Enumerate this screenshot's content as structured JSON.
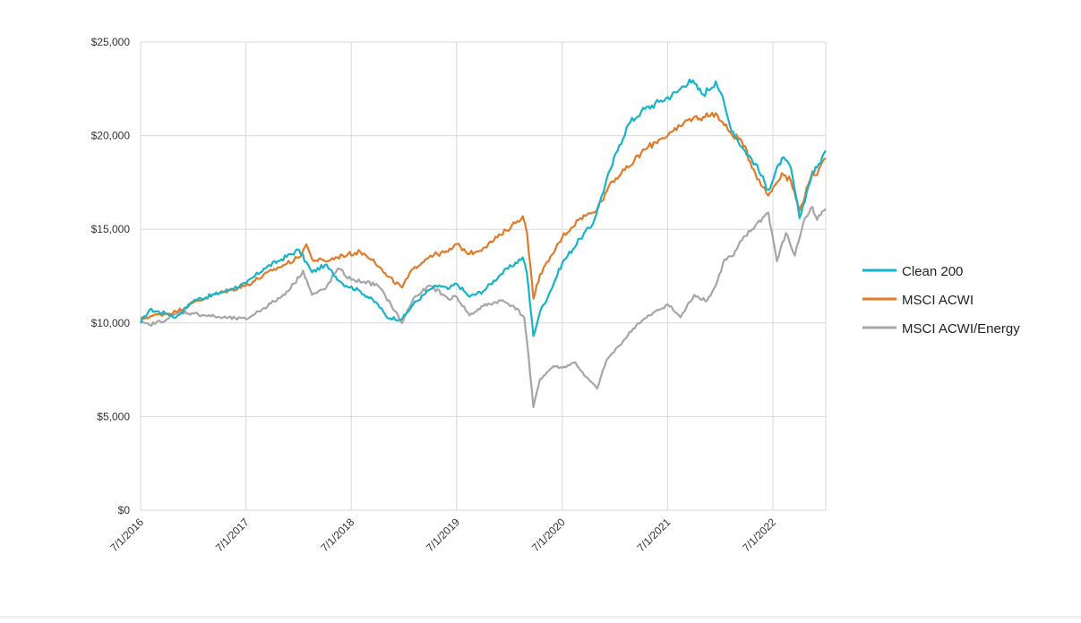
{
  "chart_data": {
    "type": "line",
    "title": "",
    "xlabel": "",
    "ylabel": "",
    "ylim": [
      0,
      25000
    ],
    "y_ticks": [
      0,
      5000,
      10000,
      15000,
      20000,
      25000
    ],
    "y_tick_labels": [
      "$0",
      "$5,000",
      "$10,000",
      "$15,000",
      "$20,000",
      "$25,000"
    ],
    "x_range": [
      "2016-07-01",
      "2022-12-31"
    ],
    "x_ticks": [
      "2016-07-01",
      "2017-07-01",
      "2018-07-01",
      "2019-07-01",
      "2020-07-01",
      "2021-07-01",
      "2022-07-01"
    ],
    "x_tick_labels": [
      "7/1/2016",
      "7/1/2017",
      "7/1/2018",
      "7/1/2019",
      "7/1/2020",
      "7/1/2021",
      "7/1/2022"
    ],
    "grid": true,
    "legend": "right",
    "series": [
      {
        "name": "Clean 200",
        "color": "#17b3c9",
        "points": [
          [
            "2016-07-01",
            10000
          ],
          [
            "2016-08-01",
            10700
          ],
          [
            "2016-10-01",
            10500
          ],
          [
            "2016-11-01",
            10300
          ],
          [
            "2017-01-01",
            11200
          ],
          [
            "2017-04-01",
            11600
          ],
          [
            "2017-07-01",
            12100
          ],
          [
            "2017-09-01",
            12900
          ],
          [
            "2017-11-01",
            13400
          ],
          [
            "2018-01-01",
            13900
          ],
          [
            "2018-02-15",
            12700
          ],
          [
            "2018-04-01",
            13100
          ],
          [
            "2018-06-01",
            12100
          ],
          [
            "2018-08-01",
            11700
          ],
          [
            "2018-10-01",
            11000
          ],
          [
            "2018-11-01",
            10300
          ],
          [
            "2018-12-24",
            10200
          ],
          [
            "2019-02-01",
            11000
          ],
          [
            "2019-04-01",
            11800
          ],
          [
            "2019-05-01",
            12000
          ],
          [
            "2019-06-01",
            11800
          ],
          [
            "2019-07-01",
            12100
          ],
          [
            "2019-08-15",
            11400
          ],
          [
            "2019-10-01",
            11700
          ],
          [
            "2019-12-01",
            12600
          ],
          [
            "2020-02-15",
            13500
          ],
          [
            "2020-03-01",
            12600
          ],
          [
            "2020-03-23",
            9300
          ],
          [
            "2020-04-15",
            10600
          ],
          [
            "2020-05-15",
            11500
          ],
          [
            "2020-07-01",
            13200
          ],
          [
            "2020-09-01",
            14500
          ],
          [
            "2020-10-15",
            15300
          ],
          [
            "2020-11-15",
            16800
          ],
          [
            "2020-12-15",
            18200
          ],
          [
            "2021-01-15",
            19500
          ],
          [
            "2021-02-15",
            20600
          ],
          [
            "2021-04-01",
            21300
          ],
          [
            "2021-06-01",
            21800
          ],
          [
            "2021-08-01",
            22300
          ],
          [
            "2021-09-15",
            23000
          ],
          [
            "2021-11-01",
            22200
          ],
          [
            "2021-12-15",
            22900
          ],
          [
            "2022-01-01",
            22300
          ],
          [
            "2022-02-01",
            20600
          ],
          [
            "2022-03-15",
            19400
          ],
          [
            "2022-05-01",
            18500
          ],
          [
            "2022-06-15",
            17100
          ],
          [
            "2022-08-01",
            18800
          ],
          [
            "2022-09-01",
            18300
          ],
          [
            "2022-10-01",
            15600
          ],
          [
            "2022-11-01",
            17300
          ],
          [
            "2022-11-15",
            18000
          ],
          [
            "2022-12-01",
            18300
          ],
          [
            "2022-12-31",
            19200
          ]
        ]
      },
      {
        "name": "MSCI ACWI",
        "color": "#e07b2a",
        "points": [
          [
            "2016-07-01",
            10200
          ],
          [
            "2016-08-15",
            10400
          ],
          [
            "2016-10-01",
            10500
          ],
          [
            "2016-11-01",
            10600
          ],
          [
            "2017-01-01",
            11100
          ],
          [
            "2017-04-01",
            11600
          ],
          [
            "2017-07-01",
            12000
          ],
          [
            "2017-10-01",
            12800
          ],
          [
            "2018-01-01",
            13500
          ],
          [
            "2018-01-26",
            14200
          ],
          [
            "2018-02-15",
            13400
          ],
          [
            "2018-04-01",
            13300
          ],
          [
            "2018-06-01",
            13600
          ],
          [
            "2018-08-01",
            13800
          ],
          [
            "2018-09-15",
            13400
          ],
          [
            "2018-11-01",
            12500
          ],
          [
            "2018-12-24",
            11900
          ],
          [
            "2019-02-01",
            12900
          ],
          [
            "2019-04-01",
            13600
          ],
          [
            "2019-06-01",
            13800
          ],
          [
            "2019-07-01",
            14200
          ],
          [
            "2019-08-15",
            13700
          ],
          [
            "2019-10-01",
            14000
          ],
          [
            "2019-12-01",
            14700
          ],
          [
            "2020-02-15",
            15700
          ],
          [
            "2020-03-01",
            14800
          ],
          [
            "2020-03-23",
            11300
          ],
          [
            "2020-04-15",
            12600
          ],
          [
            "2020-05-15",
            13300
          ],
          [
            "2020-07-01",
            14600
          ],
          [
            "2020-09-01",
            15600
          ],
          [
            "2020-10-15",
            15900
          ],
          [
            "2020-11-15",
            16500
          ],
          [
            "2020-12-15",
            17500
          ],
          [
            "2021-02-15",
            18300
          ],
          [
            "2021-04-01",
            19100
          ],
          [
            "2021-06-01",
            19800
          ],
          [
            "2021-08-01",
            20300
          ],
          [
            "2021-09-15",
            20900
          ],
          [
            "2021-11-01",
            21000
          ],
          [
            "2021-12-15",
            21200
          ],
          [
            "2022-01-01",
            20800
          ],
          [
            "2022-02-01",
            20200
          ],
          [
            "2022-03-15",
            19700
          ],
          [
            "2022-05-01",
            18000
          ],
          [
            "2022-06-15",
            16800
          ],
          [
            "2022-08-01",
            18000
          ],
          [
            "2022-09-01",
            17600
          ],
          [
            "2022-10-01",
            16000
          ],
          [
            "2022-11-01",
            17400
          ],
          [
            "2022-11-15",
            18100
          ],
          [
            "2022-12-01",
            17900
          ],
          [
            "2022-12-31",
            18800
          ]
        ]
      },
      {
        "name": "MSCI ACWI/Energy",
        "color": "#a6a6a6",
        "points": [
          [
            "2016-07-01",
            10000
          ],
          [
            "2016-08-01",
            9900
          ],
          [
            "2016-10-01",
            10200
          ],
          [
            "2016-11-15",
            10600
          ],
          [
            "2017-01-01",
            10500
          ],
          [
            "2017-04-01",
            10300
          ],
          [
            "2017-07-01",
            10200
          ],
          [
            "2017-09-01",
            10800
          ],
          [
            "2017-11-01",
            11400
          ],
          [
            "2017-12-15",
            12100
          ],
          [
            "2018-01-15",
            12800
          ],
          [
            "2018-02-15",
            11500
          ],
          [
            "2018-04-01",
            11800
          ],
          [
            "2018-05-15",
            12900
          ],
          [
            "2018-07-01",
            12300
          ],
          [
            "2018-08-15",
            12200
          ],
          [
            "2018-10-01",
            12000
          ],
          [
            "2018-11-15",
            11000
          ],
          [
            "2018-12-24",
            10000
          ],
          [
            "2019-02-01",
            11300
          ],
          [
            "2019-04-01",
            12000
          ],
          [
            "2019-06-01",
            11300
          ],
          [
            "2019-07-01",
            11400
          ],
          [
            "2019-08-15",
            10400
          ],
          [
            "2019-10-01",
            10900
          ],
          [
            "2019-12-01",
            11200
          ],
          [
            "2020-01-15",
            10900
          ],
          [
            "2020-02-20",
            10300
          ],
          [
            "2020-03-01",
            9000
          ],
          [
            "2020-03-23",
            5500
          ],
          [
            "2020-04-15",
            7000
          ],
          [
            "2020-06-01",
            7700
          ],
          [
            "2020-07-01",
            7600
          ],
          [
            "2020-08-15",
            7900
          ],
          [
            "2020-09-15",
            7200
          ],
          [
            "2020-10-30",
            6500
          ],
          [
            "2020-12-01",
            8000
          ],
          [
            "2021-01-15",
            8800
          ],
          [
            "2021-03-15",
            9900
          ],
          [
            "2021-05-01",
            10400
          ],
          [
            "2021-07-01",
            11000
          ],
          [
            "2021-08-15",
            10300
          ],
          [
            "2021-10-01",
            11500
          ],
          [
            "2021-11-15",
            11200
          ],
          [
            "2021-12-15",
            12000
          ],
          [
            "2022-01-15",
            13400
          ],
          [
            "2022-02-15",
            13600
          ],
          [
            "2022-03-15",
            14400
          ],
          [
            "2022-05-01",
            15200
          ],
          [
            "2022-06-01",
            15700
          ],
          [
            "2022-06-15",
            15900
          ],
          [
            "2022-07-15",
            13300
          ],
          [
            "2022-08-15",
            14800
          ],
          [
            "2022-09-15",
            13600
          ],
          [
            "2022-10-15",
            15400
          ],
          [
            "2022-11-15",
            16200
          ],
          [
            "2022-12-01",
            15500
          ],
          [
            "2022-12-31",
            16100
          ]
        ]
      }
    ]
  }
}
